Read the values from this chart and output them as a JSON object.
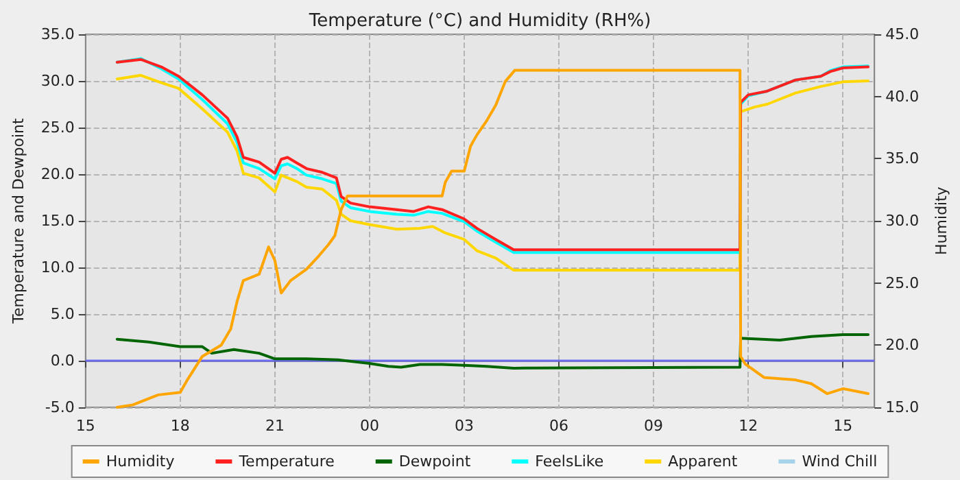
{
  "chart_data": {
    "type": "line",
    "title": "Temperature (°C) and Humidity (RH%)",
    "ylabel": "Temperature and Dewpoint",
    "y2label": "Humidity",
    "xlim": [
      15,
      40
    ],
    "xticks": [
      {
        "value": 15,
        "label": "15"
      },
      {
        "value": 18,
        "label": "18"
      },
      {
        "value": 21,
        "label": "21"
      },
      {
        "value": 24,
        "label": "00"
      },
      {
        "value": 27,
        "label": "03"
      },
      {
        "value": 30,
        "label": "06"
      },
      {
        "value": 33,
        "label": "09"
      },
      {
        "value": 36,
        "label": "12"
      },
      {
        "value": 39,
        "label": "15"
      }
    ],
    "ylim": [
      -5,
      35
    ],
    "yticks": [
      {
        "value": -5,
        "label": "-5.0"
      },
      {
        "value": 0,
        "label": "0.0"
      },
      {
        "value": 5,
        "label": "5.0"
      },
      {
        "value": 10,
        "label": "10.0"
      },
      {
        "value": 15,
        "label": "15.0"
      },
      {
        "value": 20,
        "label": "20.0"
      },
      {
        "value": 25,
        "label": "25.0"
      },
      {
        "value": 30,
        "label": "30.0"
      },
      {
        "value": 35,
        "label": "35.0"
      }
    ],
    "y2lim": [
      15,
      45
    ],
    "y2ticks": [
      {
        "value": 15,
        "label": "15.0"
      },
      {
        "value": 20,
        "label": "20.0"
      },
      {
        "value": 25,
        "label": "25.0"
      },
      {
        "value": 30,
        "label": "30.0"
      },
      {
        "value": 35,
        "label": "35.0"
      },
      {
        "value": 40,
        "label": "40.0"
      },
      {
        "value": 45,
        "label": "45.0"
      }
    ],
    "grid": true,
    "legend": "bottom",
    "marker": "none",
    "line_style": "solid",
    "ref_lines": [
      {
        "axis": "y",
        "value": 0,
        "color": "#6b6bef"
      }
    ],
    "series": [
      {
        "name": "Humidity",
        "color": "#ffa500",
        "axis": "y2",
        "x": [
          16.0,
          16.5,
          17.3,
          18.0,
          18.2,
          18.7,
          19.3,
          19.6,
          19.8,
          20.0,
          20.5,
          20.8,
          21.0,
          21.2,
          21.5,
          22.0,
          22.4,
          22.7,
          22.9,
          23.1,
          23.3,
          24.0,
          26.3,
          26.4,
          26.6,
          27.0,
          27.2,
          27.4,
          27.7,
          28.0,
          28.3,
          28.6,
          35.74,
          35.76,
          35.9,
          36.5,
          37.5,
          38.0,
          38.5,
          39.0,
          39.8
        ],
        "values": [
          15.0,
          15.2,
          16.0,
          16.2,
          17.1,
          19.1,
          20.0,
          21.3,
          23.5,
          25.2,
          25.7,
          27.9,
          26.8,
          24.2,
          25.2,
          26.1,
          27.2,
          28.1,
          28.8,
          30.9,
          32.0,
          32.0,
          32.0,
          33.1,
          34.0,
          34.0,
          36.0,
          36.9,
          38.0,
          39.3,
          41.2,
          42.1,
          42.1,
          19.1,
          18.5,
          17.4,
          17.2,
          16.9,
          16.1,
          16.5,
          16.1
        ]
      },
      {
        "name": "Temperature",
        "color": "#ff2020",
        "x": [
          16.0,
          16.75,
          17.4,
          17.95,
          18.7,
          19.5,
          19.8,
          20.0,
          20.5,
          21.0,
          21.2,
          21.4,
          21.7,
          22.0,
          22.5,
          22.95,
          23.1,
          23.4,
          24.0,
          24.86,
          25.4,
          25.86,
          26.3,
          27.0,
          27.4,
          28.0,
          28.57,
          35.74,
          35.76,
          36.0,
          36.6,
          37.5,
          38.3,
          38.6,
          39.0,
          39.8
        ],
        "values": [
          32.0,
          32.3,
          31.5,
          30.5,
          28.5,
          26.0,
          24.0,
          21.8,
          21.3,
          20.1,
          21.6,
          21.8,
          21.2,
          20.6,
          20.2,
          19.6,
          17.6,
          16.9,
          16.5,
          16.2,
          16.0,
          16.5,
          16.2,
          15.2,
          14.2,
          13.0,
          11.9,
          11.9,
          27.7,
          28.5,
          28.9,
          30.1,
          30.5,
          31.0,
          31.4,
          31.5
        ]
      },
      {
        "name": "Dewpoint",
        "color": "#006400",
        "x": [
          16.0,
          17.0,
          18.0,
          18.7,
          19.0,
          19.7,
          20.5,
          21.0,
          22.0,
          23.0,
          24.0,
          24.6,
          25.0,
          25.6,
          26.3,
          27.0,
          27.7,
          28.57,
          35.74,
          35.76,
          37.0,
          38.0,
          39.0,
          39.8
        ],
        "values": [
          2.3,
          2.0,
          1.5,
          1.5,
          0.8,
          1.2,
          0.8,
          0.2,
          0.2,
          0.1,
          -0.3,
          -0.6,
          -0.7,
          -0.4,
          -0.4,
          -0.5,
          -0.6,
          -0.8,
          -0.7,
          2.4,
          2.2,
          2.6,
          2.8,
          2.8
        ]
      },
      {
        "name": "FeelsLike",
        "color": "#00ffff",
        "x": [
          16.0,
          16.75,
          17.4,
          17.95,
          18.7,
          19.5,
          19.8,
          20.0,
          20.5,
          21.0,
          21.2,
          21.4,
          21.7,
          22.0,
          22.5,
          22.95,
          23.1,
          23.4,
          24.0,
          24.86,
          25.4,
          25.86,
          26.3,
          27.0,
          27.4,
          28.0,
          28.57,
          35.74,
          35.76,
          36.0,
          36.6,
          37.5,
          38.3,
          38.6,
          39.0,
          39.8
        ],
        "values": [
          32.0,
          32.4,
          31.3,
          30.2,
          28.0,
          25.4,
          23.4,
          21.2,
          20.6,
          19.5,
          20.9,
          21.1,
          20.6,
          19.9,
          19.5,
          19.0,
          17.1,
          16.4,
          16.0,
          15.7,
          15.6,
          16.0,
          15.8,
          14.9,
          13.9,
          12.7,
          11.6,
          11.6,
          27.5,
          28.4,
          28.9,
          30.1,
          30.5,
          31.1,
          31.5,
          31.6
        ]
      },
      {
        "name": "Apparent",
        "color": "#ffd700",
        "x": [
          16.0,
          16.75,
          17.4,
          17.95,
          18.7,
          19.5,
          19.8,
          20.0,
          20.5,
          21.0,
          21.2,
          21.7,
          22.0,
          22.5,
          22.95,
          23.1,
          23.4,
          24.0,
          24.86,
          25.6,
          26.0,
          26.4,
          27.0,
          27.4,
          28.0,
          28.57,
          35.74,
          35.76,
          36.2,
          36.6,
          37.5,
          38.3,
          39.0,
          39.8
        ],
        "values": [
          30.2,
          30.6,
          29.8,
          29.2,
          27.0,
          24.5,
          22.5,
          20.1,
          19.6,
          18.1,
          19.9,
          19.2,
          18.6,
          18.4,
          17.2,
          15.7,
          15.0,
          14.6,
          14.1,
          14.2,
          14.4,
          13.7,
          13.0,
          11.8,
          11.0,
          9.7,
          9.7,
          26.7,
          27.2,
          27.5,
          28.7,
          29.4,
          29.9,
          30.0
        ]
      },
      {
        "name": "Wind Chill",
        "color": "#a6d2ea"
      }
    ]
  }
}
